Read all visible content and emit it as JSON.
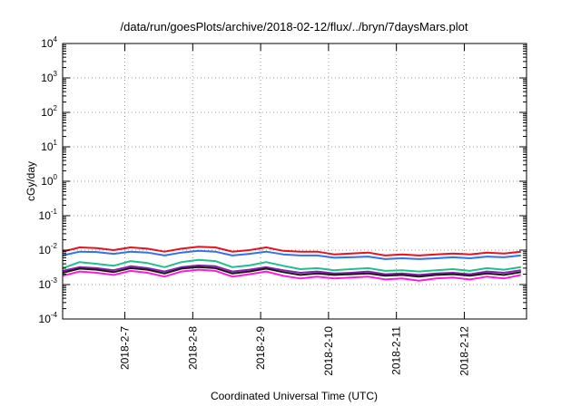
{
  "chart_data": {
    "type": "line",
    "title": "/data/run/goesPlots/archive/2018-02-12/flux/../bryn/7daysMars.plot",
    "xlabel": "Coordinated Universal Time (UTC)",
    "ylabel": "cGy/day",
    "yscale": "log",
    "ylim": [
      0.0001,
      10000
    ],
    "y_ticks": [
      {
        "base": "10",
        "exp": "-4",
        "value": 0.0001
      },
      {
        "base": "10",
        "exp": "-3",
        "value": 0.001
      },
      {
        "base": "10",
        "exp": "-2",
        "value": 0.01
      },
      {
        "base": "10",
        "exp": "-1",
        "value": 0.1
      },
      {
        "base": "10",
        "exp": "0",
        "value": 1
      },
      {
        "base": "10",
        "exp": "1",
        "value": 10
      },
      {
        "base": "10",
        "exp": "2",
        "value": 100
      },
      {
        "base": "10",
        "exp": "3",
        "value": 1000
      },
      {
        "base": "10",
        "exp": "4",
        "value": 10000
      }
    ],
    "xlim": [
      "2018-02-06 02:00",
      "2018-02-12 22:00"
    ],
    "x_ticks": [
      "2018-2-7",
      "2018-2-8",
      "2018-2-9",
      "2018-2-10",
      "2018-2-11",
      "2018-2-12"
    ],
    "grid": "dotted",
    "legend": "none",
    "x": [
      "2018-02-06 02:00",
      "2018-02-06 08:00",
      "2018-02-06 14:00",
      "2018-02-06 20:00",
      "2018-02-07 02:00",
      "2018-02-07 08:00",
      "2018-02-07 14:00",
      "2018-02-07 20:00",
      "2018-02-08 02:00",
      "2018-02-08 08:00",
      "2018-02-08 14:00",
      "2018-02-08 20:00",
      "2018-02-09 02:00",
      "2018-02-09 08:00",
      "2018-02-09 14:00",
      "2018-02-09 20:00",
      "2018-02-10 02:00",
      "2018-02-10 08:00",
      "2018-02-10 14:00",
      "2018-02-10 20:00",
      "2018-02-11 02:00",
      "2018-02-11 08:00",
      "2018-02-11 14:00",
      "2018-02-11 20:00",
      "2018-02-12 02:00",
      "2018-02-12 08:00",
      "2018-02-12 14:00",
      "2018-02-12 20:00"
    ],
    "series": [
      {
        "color": "#e8121e",
        "values": [
          0.009,
          0.012,
          0.0115,
          0.01,
          0.012,
          0.011,
          0.009,
          0.011,
          0.0125,
          0.012,
          0.009,
          0.01,
          0.012,
          0.0095,
          0.009,
          0.009,
          0.0075,
          0.008,
          0.0085,
          0.007,
          0.0075,
          0.007,
          0.0075,
          0.008,
          0.0075,
          0.0085,
          0.008,
          0.009
        ]
      },
      {
        "color": "#2f73e8",
        "values": [
          0.007,
          0.009,
          0.0088,
          0.0078,
          0.009,
          0.0085,
          0.007,
          0.0085,
          0.0095,
          0.009,
          0.007,
          0.0078,
          0.009,
          0.0075,
          0.007,
          0.007,
          0.006,
          0.0062,
          0.0065,
          0.0055,
          0.0058,
          0.0055,
          0.0058,
          0.0062,
          0.0058,
          0.0065,
          0.0062,
          0.007
        ]
      },
      {
        "color": "#1fbf8f",
        "values": [
          0.003,
          0.0045,
          0.004,
          0.0035,
          0.0048,
          0.0042,
          0.0032,
          0.0045,
          0.0052,
          0.0048,
          0.0032,
          0.0036,
          0.0045,
          0.0035,
          0.0028,
          0.003,
          0.0026,
          0.0028,
          0.003,
          0.0025,
          0.0026,
          0.0024,
          0.0026,
          0.0028,
          0.0025,
          0.003,
          0.0027,
          0.0032
        ]
      },
      {
        "color": "#8a1ea8",
        "values": [
          0.0025,
          0.0032,
          0.003,
          0.0026,
          0.0034,
          0.003,
          0.0024,
          0.0032,
          0.0036,
          0.0034,
          0.0024,
          0.0027,
          0.0032,
          0.0026,
          0.0022,
          0.0024,
          0.0021,
          0.0022,
          0.0024,
          0.002,
          0.0021,
          0.0019,
          0.0021,
          0.0022,
          0.002,
          0.0024,
          0.0022,
          0.0026
        ]
      },
      {
        "color": "#1a1a1a",
        "values": [
          0.0022,
          0.0029,
          0.0027,
          0.0023,
          0.003,
          0.0027,
          0.0021,
          0.0029,
          0.0032,
          0.003,
          0.0021,
          0.0024,
          0.0029,
          0.0023,
          0.0019,
          0.0021,
          0.0019,
          0.002,
          0.0021,
          0.0018,
          0.0019,
          0.0017,
          0.0019,
          0.002,
          0.0018,
          0.0021,
          0.0019,
          0.0023
        ]
      },
      {
        "color": "#ff1ad9",
        "values": [
          0.0018,
          0.0024,
          0.0022,
          0.0019,
          0.0025,
          0.0022,
          0.0017,
          0.0024,
          0.0027,
          0.0025,
          0.0017,
          0.002,
          0.0024,
          0.0018,
          0.0015,
          0.0017,
          0.0015,
          0.0016,
          0.0017,
          0.0014,
          0.0015,
          0.0013,
          0.0015,
          0.0016,
          0.0014,
          0.0017,
          0.0015,
          0.0019
        ]
      }
    ]
  }
}
